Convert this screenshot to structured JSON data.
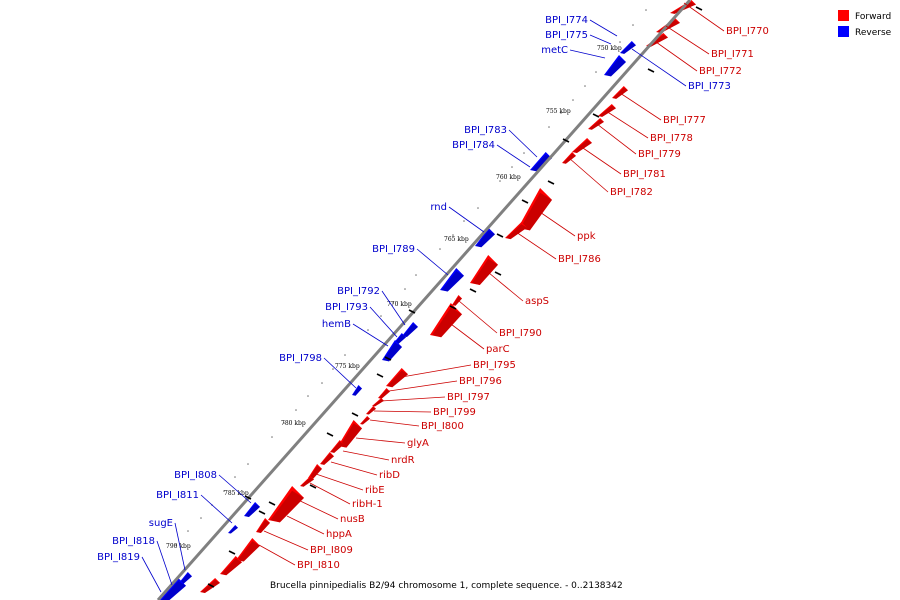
{
  "caption": "Brucella pinnipedialis B2/94 chromosome 1, complete sequence. - 0..2138342",
  "legend": [
    {
      "label": "Forward",
      "color": "#ff0000"
    },
    {
      "label": "Reverse",
      "color": "#0000ff"
    }
  ],
  "colors": {
    "forward": "#ff0000",
    "reverse": "#0000ff",
    "backbone": "#808080"
  },
  "ticks": [
    "750 kbp",
    "755 kbp",
    "760 kbp",
    "765 kbp",
    "770 kbp",
    "775 kbp",
    "780 kbp",
    "785 kbp",
    "790 kbp"
  ],
  "forward_genes": [
    "BPI_I770",
    "BPI_I771",
    "BPI_I772",
    "BPI_I777",
    "BPI_I778",
    "BPI_I779",
    "BPI_I781",
    "BPI_I782",
    "ppk",
    "BPI_I786",
    "aspS",
    "BPI_I790",
    "parC",
    "BPI_I795",
    "BPI_I796",
    "BPI_I797",
    "BPI_I799",
    "BPI_I800",
    "glyA",
    "nrdR",
    "ribD",
    "ribE",
    "ribH-1",
    "nusB",
    "hppA",
    "BPI_I809",
    "BPI_I810"
  ],
  "reverse_genes": [
    "BPI_I774",
    "BPI_I775",
    "metC",
    "BPI_I773",
    "BPI_I783",
    "BPI_I784",
    "rnd",
    "BPI_I789",
    "BPI_I792",
    "BPI_I793",
    "hemB",
    "BPI_I798",
    "BPI_I808",
    "BPI_I811",
    "sugE",
    "BPI_I818",
    "BPI_I819"
  ]
}
